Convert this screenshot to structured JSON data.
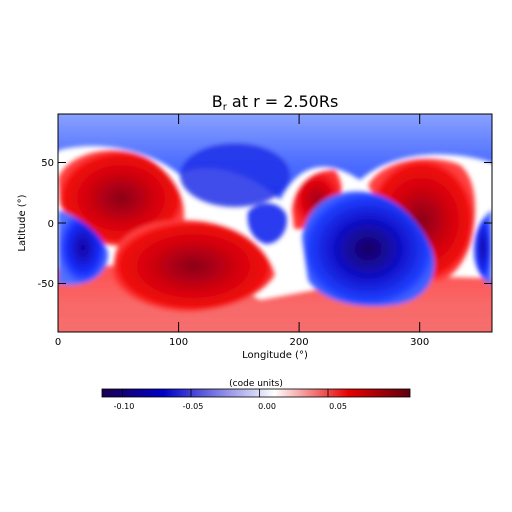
{
  "chart_data": {
    "type": "heatmap",
    "title_main": "B",
    "title_sub": "r",
    "title_rest": " at r = 2.50Rs",
    "xlabel": "Longitude (°)",
    "ylabel": "Latitude (°)",
    "xlim": [
      0,
      360
    ],
    "ylim": [
      -90,
      90
    ],
    "xticks": [
      "0",
      "100",
      "200",
      "300"
    ],
    "yticks": [
      "50",
      "0",
      "-50"
    ],
    "colorbar": {
      "label": "(code units)",
      "range": [
        -0.125,
        0.1
      ],
      "ticks": [
        "-0.10",
        "-0.05",
        "0.00",
        "0.05"
      ],
      "colors": [
        "#1a0050",
        "#0000d0",
        "#ffffff",
        "#e80000",
        "#600010"
      ]
    },
    "features": [
      {
        "lon": 55,
        "lat": 20,
        "value": 0.1
      },
      {
        "lon": 135,
        "lat": -35,
        "value": 0.095
      },
      {
        "lon": 255,
        "lat": -20,
        "value": -0.125
      },
      {
        "lon": 320,
        "lat": 25,
        "value": 0.09
      },
      {
        "lon": 225,
        "lat": 25,
        "value": 0.07
      },
      {
        "lon": 15,
        "lat": -25,
        "value": -0.1
      },
      {
        "lon": 120,
        "lat": 45,
        "value": -0.08
      },
      {
        "lon": 170,
        "lat": 5,
        "value": -0.08
      },
      {
        "lon": 180,
        "lat": -80,
        "value": 0.05
      }
    ]
  }
}
